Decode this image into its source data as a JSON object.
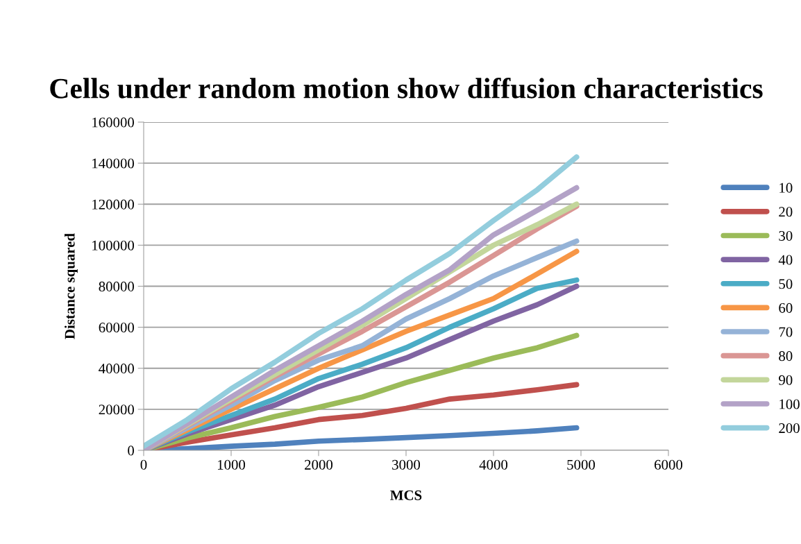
{
  "chart_data": {
    "type": "line",
    "title": "Cells under random motion show diffusion characteristics",
    "xlabel": "MCS",
    "ylabel": "Distance squared",
    "x": [
      0,
      500,
      1000,
      1500,
      2000,
      2500,
      3000,
      3500,
      4000,
      4500,
      4950
    ],
    "xlim": [
      0,
      6000
    ],
    "xticks": [
      0,
      1000,
      2000,
      3000,
      4000,
      5000,
      6000
    ],
    "ylim": [
      0,
      160000
    ],
    "yticks": [
      0,
      20000,
      40000,
      60000,
      80000,
      100000,
      120000,
      140000,
      160000
    ],
    "grid": "y",
    "legend": "right",
    "series": [
      {
        "name": "10",
        "color": "#4f81bd",
        "values": [
          0,
          800,
          2000,
          3000,
          4500,
          5300,
          6200,
          7200,
          8300,
          9500,
          11000
        ]
      },
      {
        "name": "20",
        "color": "#c0504d",
        "values": [
          0,
          4000,
          7500,
          11000,
          15000,
          17000,
          20500,
          25000,
          27000,
          29500,
          32000
        ]
      },
      {
        "name": "30",
        "color": "#9bbb59",
        "values": [
          0,
          6000,
          11000,
          16500,
          21000,
          26000,
          33000,
          39000,
          45000,
          50000,
          56000
        ]
      },
      {
        "name": "40",
        "color": "#8064a2",
        "values": [
          0,
          8000,
          15000,
          22000,
          31000,
          38000,
          45000,
          54000,
          63000,
          71000,
          80000
        ]
      },
      {
        "name": "50",
        "color": "#4bacc6",
        "values": [
          0,
          9000,
          17000,
          25000,
          35000,
          42000,
          50000,
          60000,
          69000,
          79000,
          83000
        ]
      },
      {
        "name": "60",
        "color": "#f79646",
        "values": [
          0,
          10000,
          20000,
          30000,
          40000,
          49000,
          58000,
          66000,
          74000,
          86000,
          97000
        ]
      },
      {
        "name": "70",
        "color": "#95b3d7",
        "values": [
          0,
          11000,
          22000,
          34000,
          44000,
          51000,
          64000,
          74000,
          85000,
          94000,
          102000
        ]
      },
      {
        "name": "80",
        "color": "#da9694",
        "values": [
          0,
          12000,
          24000,
          36000,
          47000,
          58000,
          70000,
          82000,
          95000,
          108000,
          119000
        ]
      },
      {
        "name": "90",
        "color": "#c3d69b",
        "values": [
          0,
          12500,
          25000,
          37000,
          49000,
          61000,
          74000,
          87000,
          100000,
          110000,
          120000
        ]
      },
      {
        "name": "100",
        "color": "#b3a2c7",
        "values": [
          0,
          13000,
          26000,
          39000,
          51000,
          63000,
          76000,
          88000,
          105000,
          117000,
          128000
        ]
      },
      {
        "name": "200",
        "color": "#93cddd",
        "values": [
          2000,
          15000,
          30000,
          43000,
          57000,
          69000,
          83000,
          96000,
          112000,
          127000,
          143000
        ]
      }
    ]
  }
}
